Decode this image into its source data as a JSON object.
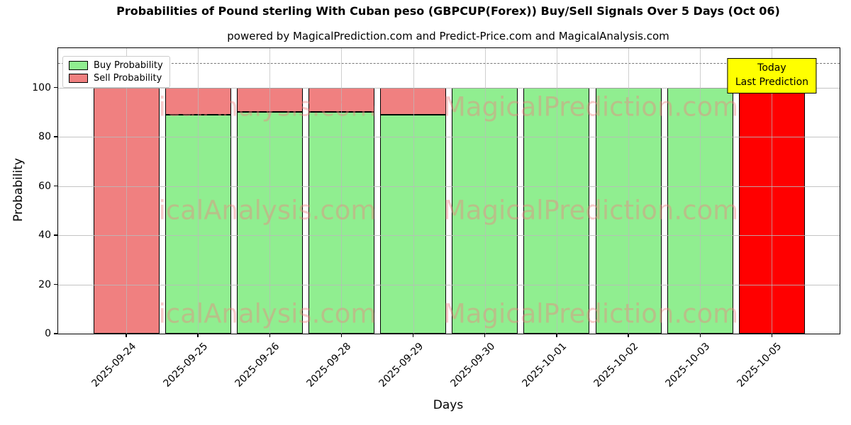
{
  "title": "Probabilities of Pound sterling With Cuban peso (GBPCUP(Forex)) Buy/Sell Signals Over 5 Days (Oct 06)",
  "subtitle": "powered by MagicalPrediction.com and Predict-Price.com and MagicalAnalysis.com",
  "axes": {
    "xlabel": "Days",
    "ylabel": "Probability",
    "yticks": [
      0,
      20,
      40,
      60,
      80,
      100
    ],
    "grid": true,
    "ylim": [
      0,
      116
    ]
  },
  "legend": {
    "position": "upper-left",
    "items": [
      {
        "label": "Buy Probability",
        "color": "#90EE90"
      },
      {
        "label": "Sell Probability",
        "color": "#F08080"
      }
    ]
  },
  "annotation": {
    "line1": "Today",
    "line2": "Last Prediction",
    "bg_color": "#FFFF00",
    "attached_category": "2025-10-05"
  },
  "watermark": {
    "texts": [
      "MagicalAnalysis.com",
      "MagicalPrediction.com"
    ],
    "color": "rgba(240,128,128,0.42)"
  },
  "chart_data": {
    "type": "bar",
    "stacked": true,
    "dashed_hline": 110,
    "categories": [
      "2025-09-24",
      "2025-09-25",
      "2025-09-26",
      "2025-09-28",
      "2025-09-29",
      "2025-09-30",
      "2025-10-01",
      "2025-10-02",
      "2025-10-03",
      "2025-10-05"
    ],
    "series": [
      {
        "name": "Buy Probability",
        "color": "#90EE90",
        "values": [
          0,
          89,
          90,
          90,
          89,
          100,
          100,
          100,
          100,
          0
        ]
      },
      {
        "name": "Sell Probability",
        "color": "#F08080",
        "values": [
          100,
          11,
          10,
          10,
          11,
          0,
          0,
          0,
          0,
          0
        ]
      },
      {
        "name": "Today Last Prediction",
        "color": "#FF0000",
        "values": [
          0,
          0,
          0,
          0,
          0,
          0,
          0,
          0,
          0,
          100
        ]
      }
    ],
    "title": "Probabilities of Pound sterling With Cuban peso (GBPCUP(Forex)) Buy/Sell Signals Over 5 Days (Oct 06)",
    "xlabel": "Days",
    "ylabel": "Probability"
  }
}
